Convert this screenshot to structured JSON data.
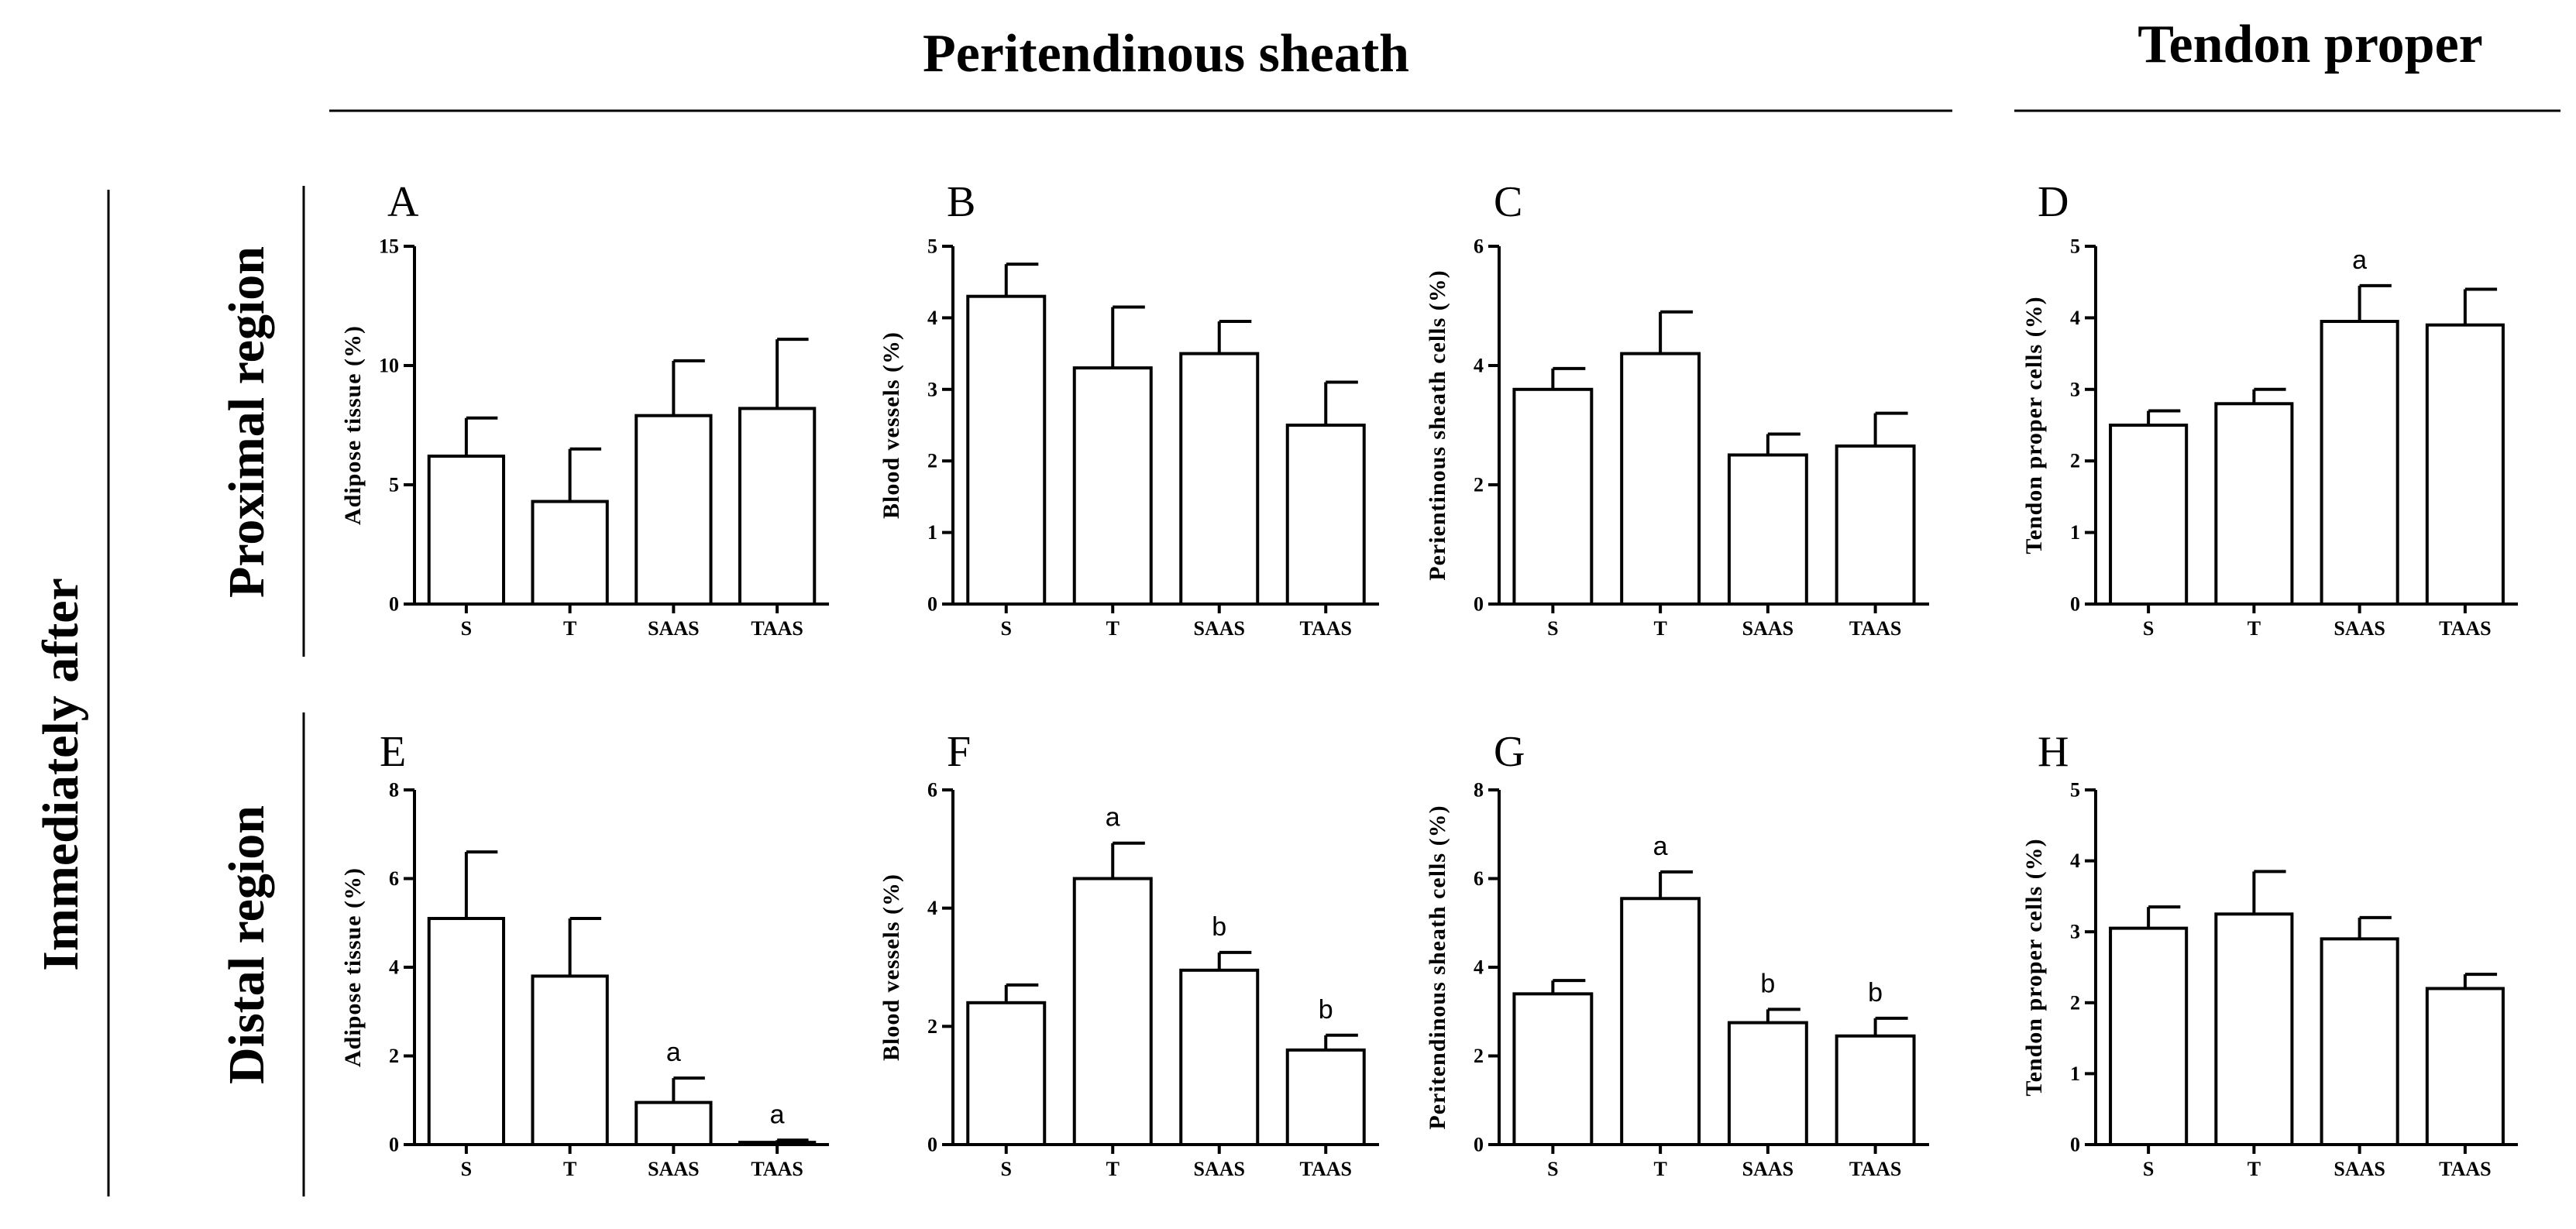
{
  "headers": {
    "peritendinous": "Peritendinous sheath",
    "tendon": "Tendon proper",
    "timepoint": "Immediately after",
    "proximal": "Proximal region",
    "distal": "Distal region"
  },
  "colors": {
    "bar_fill": "#ffffff",
    "stroke": "#000000"
  },
  "chart_data": [
    {
      "panel": "A",
      "type": "bar",
      "ylabel": "Adipose tissue (%)",
      "categories": [
        "S",
        "T",
        "SAAS",
        "TAAS"
      ],
      "values": [
        6.2,
        4.3,
        7.9,
        8.2
      ],
      "errors": [
        1.6,
        2.2,
        2.3,
        2.9
      ],
      "annotations": [
        "",
        "",
        "",
        ""
      ],
      "ylim": [
        0,
        15
      ],
      "yticks": [
        0,
        5,
        10,
        15
      ]
    },
    {
      "panel": "B",
      "type": "bar",
      "ylabel": "Blood vessels (%)",
      "categories": [
        "S",
        "T",
        "SAAS",
        "TAAS"
      ],
      "values": [
        4.3,
        3.3,
        3.5,
        2.5
      ],
      "errors": [
        0.45,
        0.85,
        0.45,
        0.6
      ],
      "annotations": [
        "",
        "",
        "",
        ""
      ],
      "ylim": [
        0,
        5
      ],
      "yticks": [
        0,
        1,
        2,
        3,
        4,
        5
      ]
    },
    {
      "panel": "C",
      "type": "bar",
      "ylabel": "Perientinous sheath cells (%)",
      "categories": [
        "S",
        "T",
        "SAAS",
        "TAAS"
      ],
      "values": [
        3.6,
        4.2,
        2.5,
        2.65
      ],
      "errors": [
        0.35,
        0.7,
        0.35,
        0.55
      ],
      "annotations": [
        "",
        "",
        "",
        ""
      ],
      "ylim": [
        0,
        6
      ],
      "yticks": [
        0,
        2,
        4,
        6
      ]
    },
    {
      "panel": "D",
      "type": "bar",
      "ylabel": "Tendon proper cells (%)",
      "categories": [
        "S",
        "T",
        "SAAS",
        "TAAS"
      ],
      "values": [
        2.5,
        2.8,
        3.95,
        3.9
      ],
      "errors": [
        0.2,
        0.2,
        0.5,
        0.5
      ],
      "annotations": [
        "",
        "",
        "a",
        ""
      ],
      "ylim": [
        0,
        5
      ],
      "yticks": [
        0,
        1,
        2,
        3,
        4,
        5
      ]
    },
    {
      "panel": "E",
      "type": "bar",
      "ylabel": "Adipose tissue (%)",
      "categories": [
        "S",
        "T",
        "SAAS",
        "TAAS"
      ],
      "values": [
        5.1,
        3.8,
        0.95,
        0.05
      ],
      "errors": [
        1.5,
        1.3,
        0.55,
        0.05
      ],
      "annotations": [
        "",
        "",
        "a",
        "a"
      ],
      "ylim": [
        0,
        8
      ],
      "yticks": [
        0,
        2,
        4,
        6,
        8
      ]
    },
    {
      "panel": "F",
      "type": "bar",
      "ylabel": "Blood vessels (%)",
      "categories": [
        "S",
        "T",
        "SAAS",
        "TAAS"
      ],
      "values": [
        2.4,
        4.5,
        2.95,
        1.6
      ],
      "errors": [
        0.3,
        0.6,
        0.3,
        0.25
      ],
      "annotations": [
        "",
        "a",
        "b",
        "b"
      ],
      "ylim": [
        0,
        6
      ],
      "yticks": [
        0,
        2,
        4,
        6
      ]
    },
    {
      "panel": "G",
      "type": "bar",
      "ylabel": "Peritendinous sheath cells (%)",
      "categories": [
        "S",
        "T",
        "SAAS",
        "TAAS"
      ],
      "values": [
        3.4,
        5.55,
        2.75,
        2.45
      ],
      "errors": [
        0.3,
        0.6,
        0.3,
        0.4
      ],
      "annotations": [
        "",
        "a",
        "b",
        "b"
      ],
      "ylim": [
        0,
        8
      ],
      "yticks": [
        0,
        2,
        4,
        6,
        8
      ]
    },
    {
      "panel": "H",
      "type": "bar",
      "ylabel": "Tendon proper cells (%)",
      "categories": [
        "S",
        "T",
        "SAAS",
        "TAAS"
      ],
      "values": [
        3.05,
        3.25,
        2.9,
        2.2
      ],
      "errors": [
        0.3,
        0.6,
        0.3,
        0.2
      ],
      "annotations": [
        "",
        "",
        "",
        ""
      ],
      "ylim": [
        0,
        5
      ],
      "yticks": [
        0,
        1,
        2,
        3,
        4,
        5
      ]
    }
  ]
}
